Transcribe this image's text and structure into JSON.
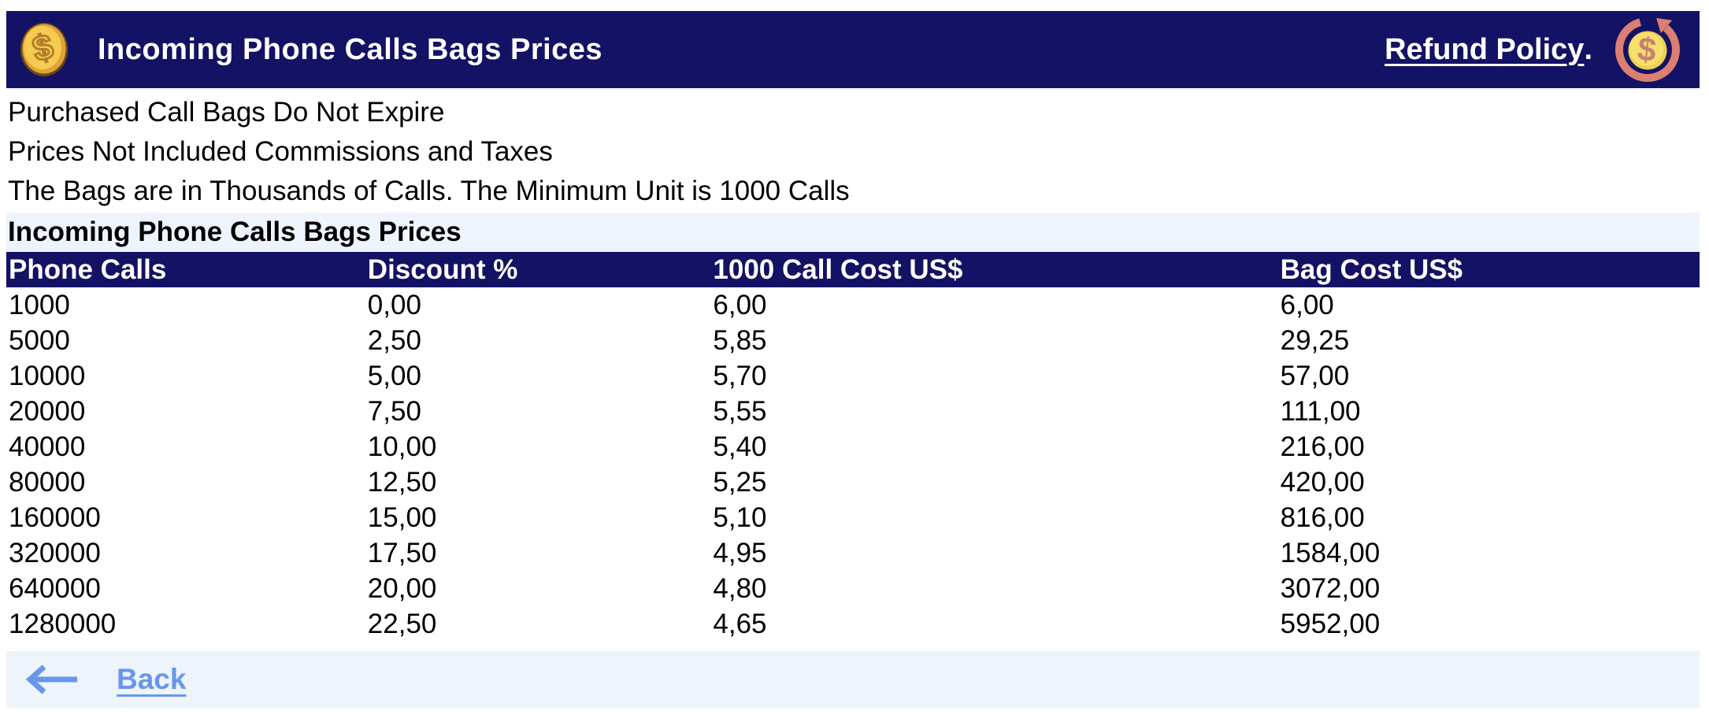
{
  "colors": {
    "navy": "#141264",
    "band_blue": "#edf4fb",
    "link_blue": "#6996eb",
    "text_black": "#000000",
    "title_white": "#ffffff",
    "coin_gold": "#f6cb4f",
    "coin_rim": "#dfa33b",
    "coin_border": "#6b4a17",
    "coin_symbol": "#b07f2c",
    "refund_arrow": "#db7f72",
    "refund_coin": "#f4e06a",
    "refund_coin_edge": "#ecd055",
    "refund_symbol": "#c58275"
  },
  "header": {
    "title": "Incoming Phone Calls Bags Prices",
    "refund_link_label": "Refund Policy",
    "refund_suffix": ".",
    "coin_icon": "dollar-coin-icon",
    "refund_icon": "refund-coin-icon"
  },
  "notes": {
    "line1": "Purchased Call Bags Do Not Expire",
    "line2": "Prices Not Included Commissions and Taxes",
    "line3": "The Bags are in Thousands of Calls. The Minimum Unit is 1000 Calls"
  },
  "section": {
    "title": "Incoming Phone Calls Bags Prices"
  },
  "table": {
    "headers": [
      "Phone Calls",
      "Discount %",
      "1000 Call Cost US$",
      "Bag Cost US$"
    ],
    "rows": [
      [
        "1000",
        "0,00",
        "6,00",
        "6,00"
      ],
      [
        "5000",
        "2,50",
        "5,85",
        "29,25"
      ],
      [
        "10000",
        "5,00",
        "5,70",
        "57,00"
      ],
      [
        "20000",
        "7,50",
        "5,55",
        "111,00"
      ],
      [
        "40000",
        "10,00",
        "5,40",
        "216,00"
      ],
      [
        "80000",
        "12,50",
        "5,25",
        "420,00"
      ],
      [
        "160000",
        "15,00",
        "5,10",
        "816,00"
      ],
      [
        "320000",
        "17,50",
        "4,95",
        "1584,00"
      ],
      [
        "640000",
        "20,00",
        "4,80",
        "3072,00"
      ],
      [
        "1280000",
        "22,50",
        "4,65",
        "5952,00"
      ]
    ]
  },
  "footer": {
    "back_label": "Back"
  }
}
